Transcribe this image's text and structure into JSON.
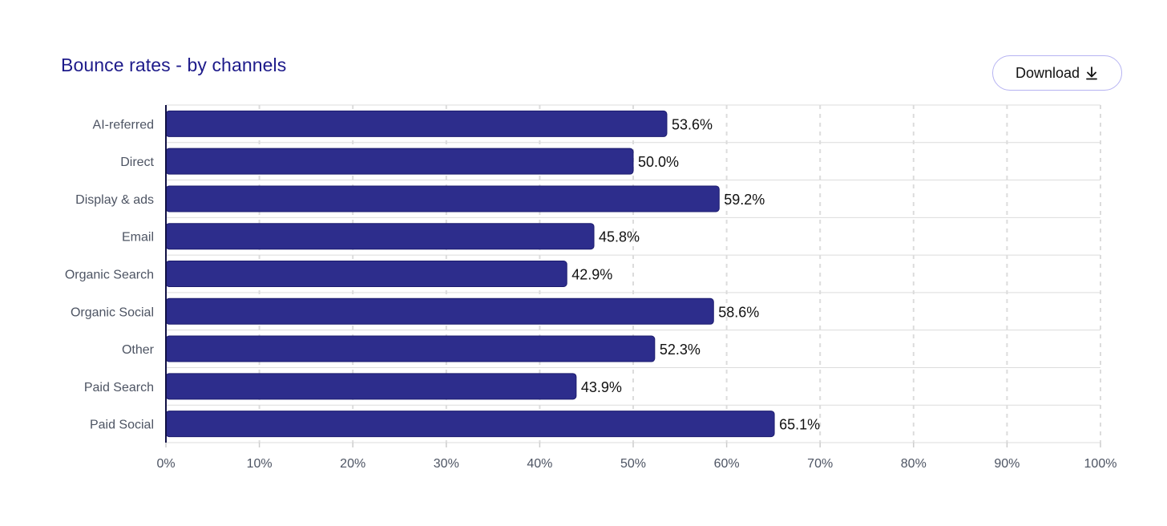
{
  "header": {
    "title": "Bounce rates - by channels",
    "download_label": "Download",
    "download_icon": "download-arrow-icon"
  },
  "colors": {
    "bar": "#2d2d8c",
    "title": "#1d1a8a",
    "button_border": "#b6b3f2",
    "grid": "#dcdcdc",
    "axis": "#111144"
  },
  "chart_data": {
    "type": "bar",
    "orientation": "horizontal",
    "title": "Bounce rates - by channels",
    "categories": [
      "AI-referred",
      "Direct",
      "Display & ads",
      "Email",
      "Organic Search",
      "Organic Social",
      "Other",
      "Paid Search",
      "Paid Social"
    ],
    "values": [
      53.6,
      50.0,
      59.2,
      45.8,
      42.9,
      58.6,
      52.3,
      43.9,
      65.1
    ],
    "value_labels": [
      "53.6%",
      "50.0%",
      "59.2%",
      "45.8%",
      "42.9%",
      "58.6%",
      "52.3%",
      "43.9%",
      "65.1%"
    ],
    "xlim": [
      0,
      100
    ],
    "x_ticks": [
      "0%",
      "10%",
      "20%",
      "30%",
      "40%",
      "50%",
      "60%",
      "70%",
      "80%",
      "90%",
      "100%"
    ],
    "x_tick_values": [
      0,
      10,
      20,
      30,
      40,
      50,
      60,
      70,
      80,
      90,
      100
    ],
    "xlabel": "",
    "ylabel": "",
    "grid": true,
    "legend": false
  }
}
